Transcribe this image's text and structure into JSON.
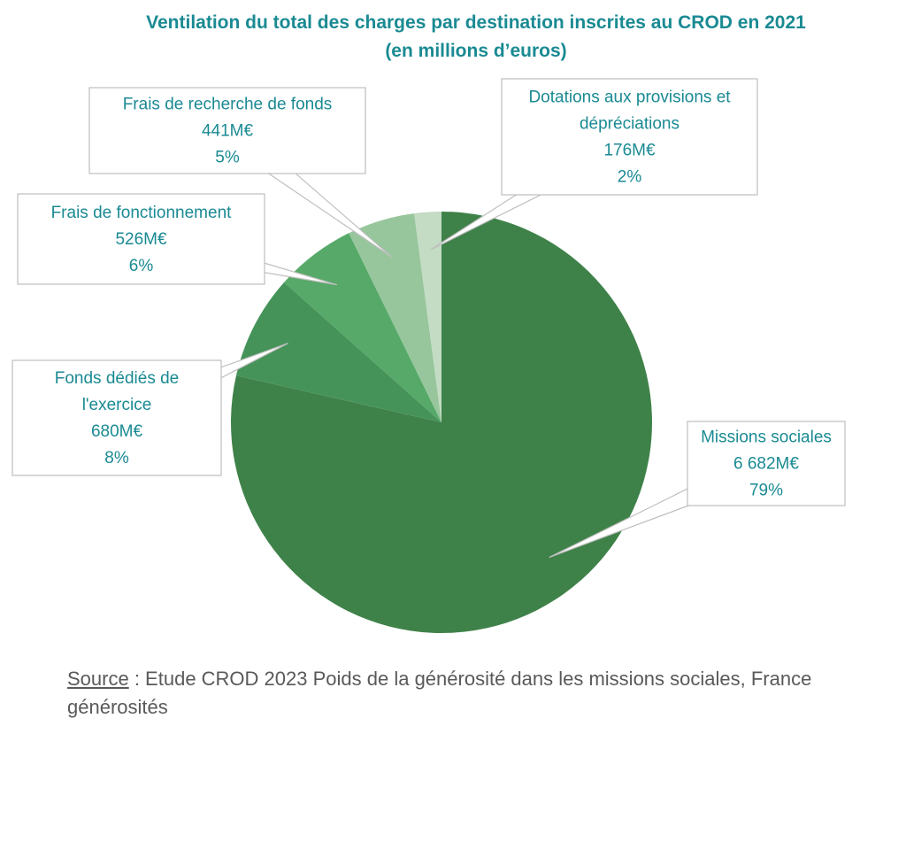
{
  "chart_data": {
    "type": "pie",
    "title": "Ventilation du total des charges par destination inscrites au CROD en 2021",
    "subtitle": "(en millions d’euros)",
    "slices": [
      {
        "label_lines": [
          "Missions sociales"
        ],
        "value_label": "6 682M€",
        "pct_label": "79%",
        "value": 6682,
        "color": "#3f8249"
      },
      {
        "label_lines": [
          "Fonds dédiés de",
          "l'exercice"
        ],
        "value_label": "680M€",
        "pct_label": "8%",
        "value": 680,
        "color": "#46935a"
      },
      {
        "label_lines": [
          "Frais de fonctionnement"
        ],
        "value_label": "526M€",
        "pct_label": "6%",
        "value": 526,
        "color": "#56a968"
      },
      {
        "label_lines": [
          "Frais de recherche de fonds"
        ],
        "value_label": "441M€",
        "pct_label": "5%",
        "value": 441,
        "color": "#97c69d"
      },
      {
        "label_lines": [
          "Dotations aux provisions et",
          "dépréciations"
        ],
        "value_label": "176M€",
        "pct_label": "2%",
        "value": 176,
        "color": "#c3dcc3"
      }
    ]
  },
  "source": {
    "label": "Source",
    "text": " : Etude CROD 2023 Poids de la générosité dans les missions sociales, France générosités"
  }
}
